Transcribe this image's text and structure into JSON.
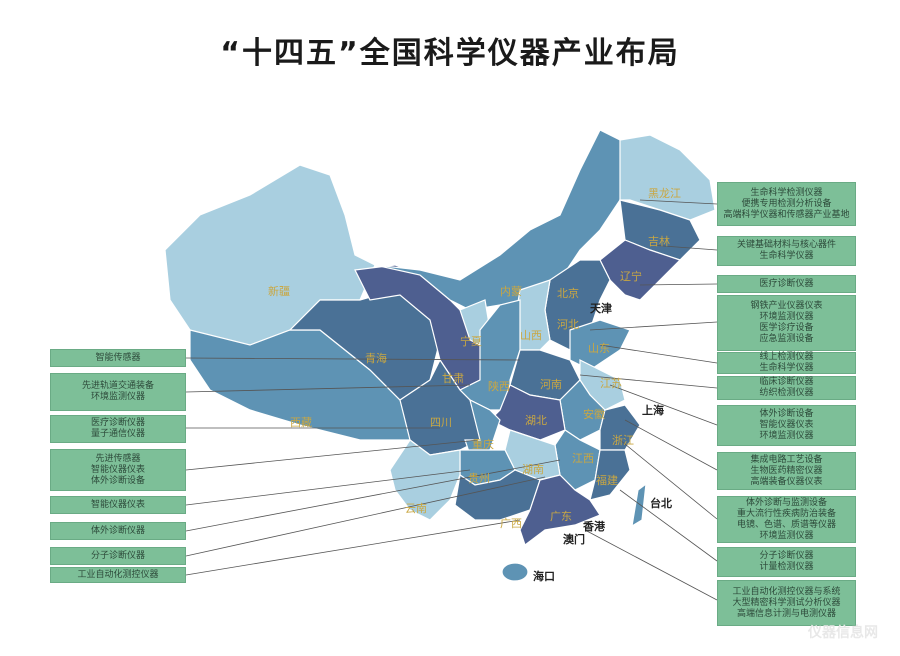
{
  "title": "“十四五”全国科学仪器产业布局",
  "colors": {
    "box": "#7dbf98",
    "light": "#a9cfe0",
    "medium": "#5e93b4",
    "dark": "#4a7196",
    "purple": "#4e5f90",
    "province_label": "#c9a742"
  },
  "provinces": [
    "黑龙江",
    "吉林",
    "辽宁",
    "新疆",
    "内蒙",
    "北京",
    "河北",
    "宁夏",
    "山西",
    "山东",
    "青海",
    "甘肃",
    "陕西",
    "河南",
    "江苏",
    "西藏",
    "四川",
    "湖北",
    "安徽",
    "浙江",
    "重庆",
    "贵州",
    "湖南",
    "江西",
    "福建",
    "云南",
    "广西",
    "广东"
  ],
  "cities": [
    "天津",
    "上海",
    "台北",
    "香港",
    "澳门",
    "海口"
  ],
  "left_boxes": [
    [
      "智能传感器"
    ],
    [
      "先进轨道交通装备",
      "环境监测仪器"
    ],
    [
      "医疗诊断仪器",
      "量子通信仪器"
    ],
    [
      "先进传感器",
      "智能仪器仪表",
      "体外诊断设备"
    ],
    [
      "智能仪器仪表"
    ],
    [
      "体外诊断仪器"
    ],
    [
      "分子诊断仪器"
    ],
    [
      "工业自动化测控仪器"
    ]
  ],
  "right_boxes": [
    [
      "生命科学检测仪器",
      "便携专用检测分析设备",
      "高端科学仪器和传感器产业基地"
    ],
    [
      "关键基础材料与核心器件",
      "生命科学仪器"
    ],
    [
      "医疗诊断仪器"
    ],
    [
      "钢铁产业仪器仪表",
      "环境监测仪器",
      "医学诊疗设备",
      "应急监测设备"
    ],
    [
      "线上检测仪器",
      "生命科学仪器"
    ],
    [
      "临床诊断仪器",
      "纺织检测仪器"
    ],
    [
      "体外诊断设备",
      "智能仪器仪表",
      "环境监测仪器"
    ],
    [
      "集成电路工艺设备",
      "生物医药精密仪器",
      "高端装备仪器仪表"
    ],
    [
      "体外诊断与监测设备",
      "重大流行性疾病防治装备",
      "电镜、色谱、质谱等仪器",
      "环境监测仪器"
    ],
    [
      "分子诊断仪器",
      "计量检测仪器"
    ],
    [
      "工业自动化测控仪器与系统",
      "大型精密科学测试分析仪器",
      "高端信息计测与电测仪器"
    ]
  ],
  "watermark": "仪器信息网"
}
